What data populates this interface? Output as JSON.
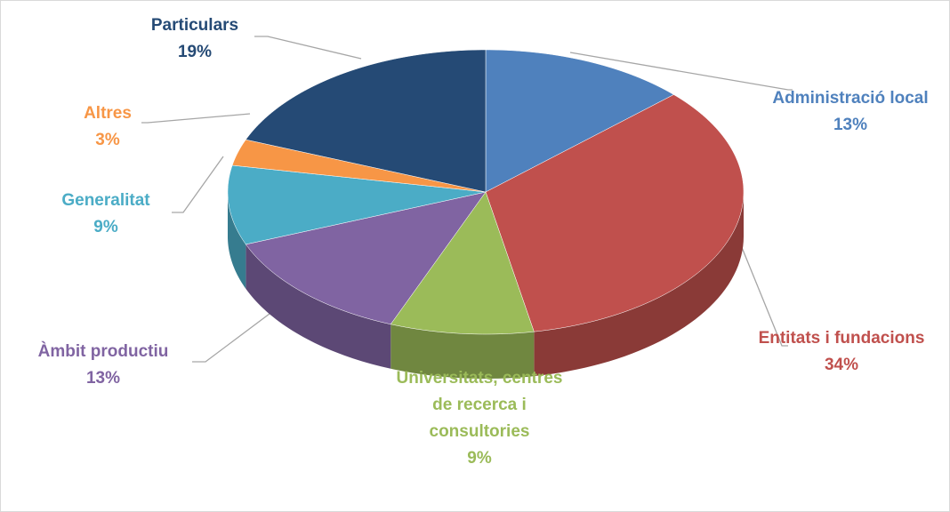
{
  "chart_data": {
    "type": "pie",
    "categories": [
      "Administració local",
      "Entitats i fundacions",
      "Universitats, centres de recerca i consultories",
      "Àmbit productiu",
      "Generalitat",
      "Altres",
      "Particulars"
    ],
    "values": [
      13,
      34,
      9,
      13,
      9,
      3,
      19
    ],
    "value_labels": [
      "13%",
      "34%",
      "9%",
      "13%",
      "9%",
      "3%",
      "19%"
    ],
    "colors": [
      "#4f81bd",
      "#c0504d",
      "#9bbb59",
      "#8064a2",
      "#4bacc6",
      "#f79646",
      "#254a75"
    ]
  }
}
